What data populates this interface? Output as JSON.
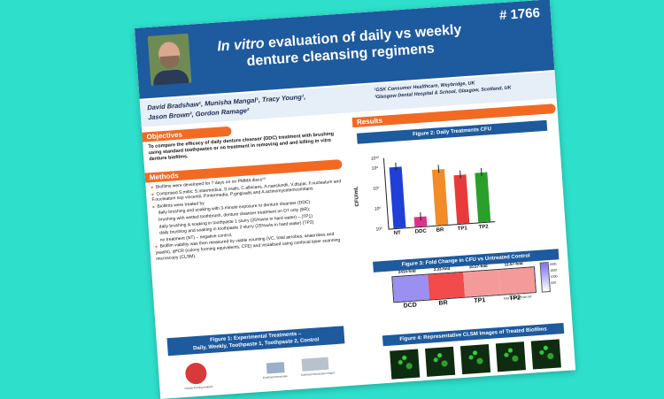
{
  "poster": {
    "id": "# 1766",
    "title_italic": "In vitro",
    "title_rest": " evaluation of daily vs weekly denture cleansing regimens",
    "authors_line1": "David Bradshaw¹, Munisha Mangal¹, Tracy Young¹,",
    "authors_line2": "Jason Brown², Gordon Ramage²",
    "affil_line1": "¹GSK Consumer Healthcare, Weybridge, UK",
    "affil_line2": "²Glasgow Dental Hospital & School, Glasgow, Scotland, UK"
  },
  "objectives": {
    "heading": "Objectives",
    "text": "To compare the efficacy of daily denture cleanser (DDC) treatment with brushing using standard toothpastes or no treatment in removing and and killing in vitro denture biofilms."
  },
  "methods": {
    "heading": "Methods",
    "items": [
      "Biofilms were developed for 7 days on on PMMA discs⁽¹⁾",
      "Comprised S.mitis; S.intermedius, S.oralis, C.albicans, A.naeslundii, V.dispar, F.nucleatum and F.nucleatum ssp vincentii, P.intermedia, P.gingivalis and A.actinomycetemcomitans",
      "Biofilms were treated by",
      "daily brushing and soaking with 3-minute exposure to denture cleanser (DDC)",
      "brushing with wetted toothbrush, denture cleanser treatment on D7 only (BR);",
      "daily brushing & soaking in toothpaste 1 slurry (25%w/w in hard water) – (TP1)",
      "daily brushing and soaking in toothpaste 2 slurry (25%w/w in hard water) (TP2)",
      "no treatment (NT) – negative control,",
      "Biofilm viability was then measured by viable counting (VC, total aerobes, anaerobes and yeasts), qPCR (colony forming equivalents, CFE) and visualised using confocal laser scanning microscopy (CLSM)."
    ]
  },
  "figure1": {
    "title_line1": "Figure 1:  Experimental Treatments –",
    "title_line2": "Daily, Weekly, Toothpaste 1, Toothpaste 2, Control",
    "labels": [
      "Colony forming analysis",
      "Confocal microscope",
      "Confocal microscope images"
    ]
  },
  "results": {
    "heading": "Results"
  },
  "figure2": {
    "title": "Figure 2: Daily Treatments CFU",
    "chart_data": {
      "type": "bar",
      "categories": [
        "NT",
        "DDC",
        "BR",
        "TP1",
        "TP2"
      ],
      "values": [
        1000000000,
        10000,
        300000000,
        60000000,
        80000000
      ],
      "ylabel": "CFU/mL",
      "yscale": "log",
      "ylim": [
        1000,
        10000000000
      ],
      "yticks": [
        "10³",
        "10⁵",
        "10⁷",
        "10⁹",
        "10¹⁰"
      ],
      "colors": [
        "#1f3fd6",
        "#e0308a",
        "#f28c28",
        "#e83a3a",
        "#2aa02a"
      ]
    }
  },
  "figure3": {
    "title": "Figure 3: Fold Change in CFU vs Untreated Control",
    "chart_data": {
      "type": "heatmap",
      "categories": [
        "DCD",
        "BR",
        "TP1",
        "TP2"
      ],
      "values": [
        2414,
        2.33,
        10.57,
        12.57
      ],
      "labels": [
        "2414-fold",
        "2.33-fold",
        "10.57-fold",
        "12.57-fold"
      ],
      "legend_ticks": [
        "2000",
        "1500",
        "1000",
        "500"
      ],
      "legend_title": "fold change from NT"
    }
  },
  "figure4": {
    "title": "Figure 4: Representative CLSM Images of Treated Biofilms",
    "labels": [
      "NT",
      "DDC",
      "BR",
      "TP1",
      "TP2"
    ]
  }
}
